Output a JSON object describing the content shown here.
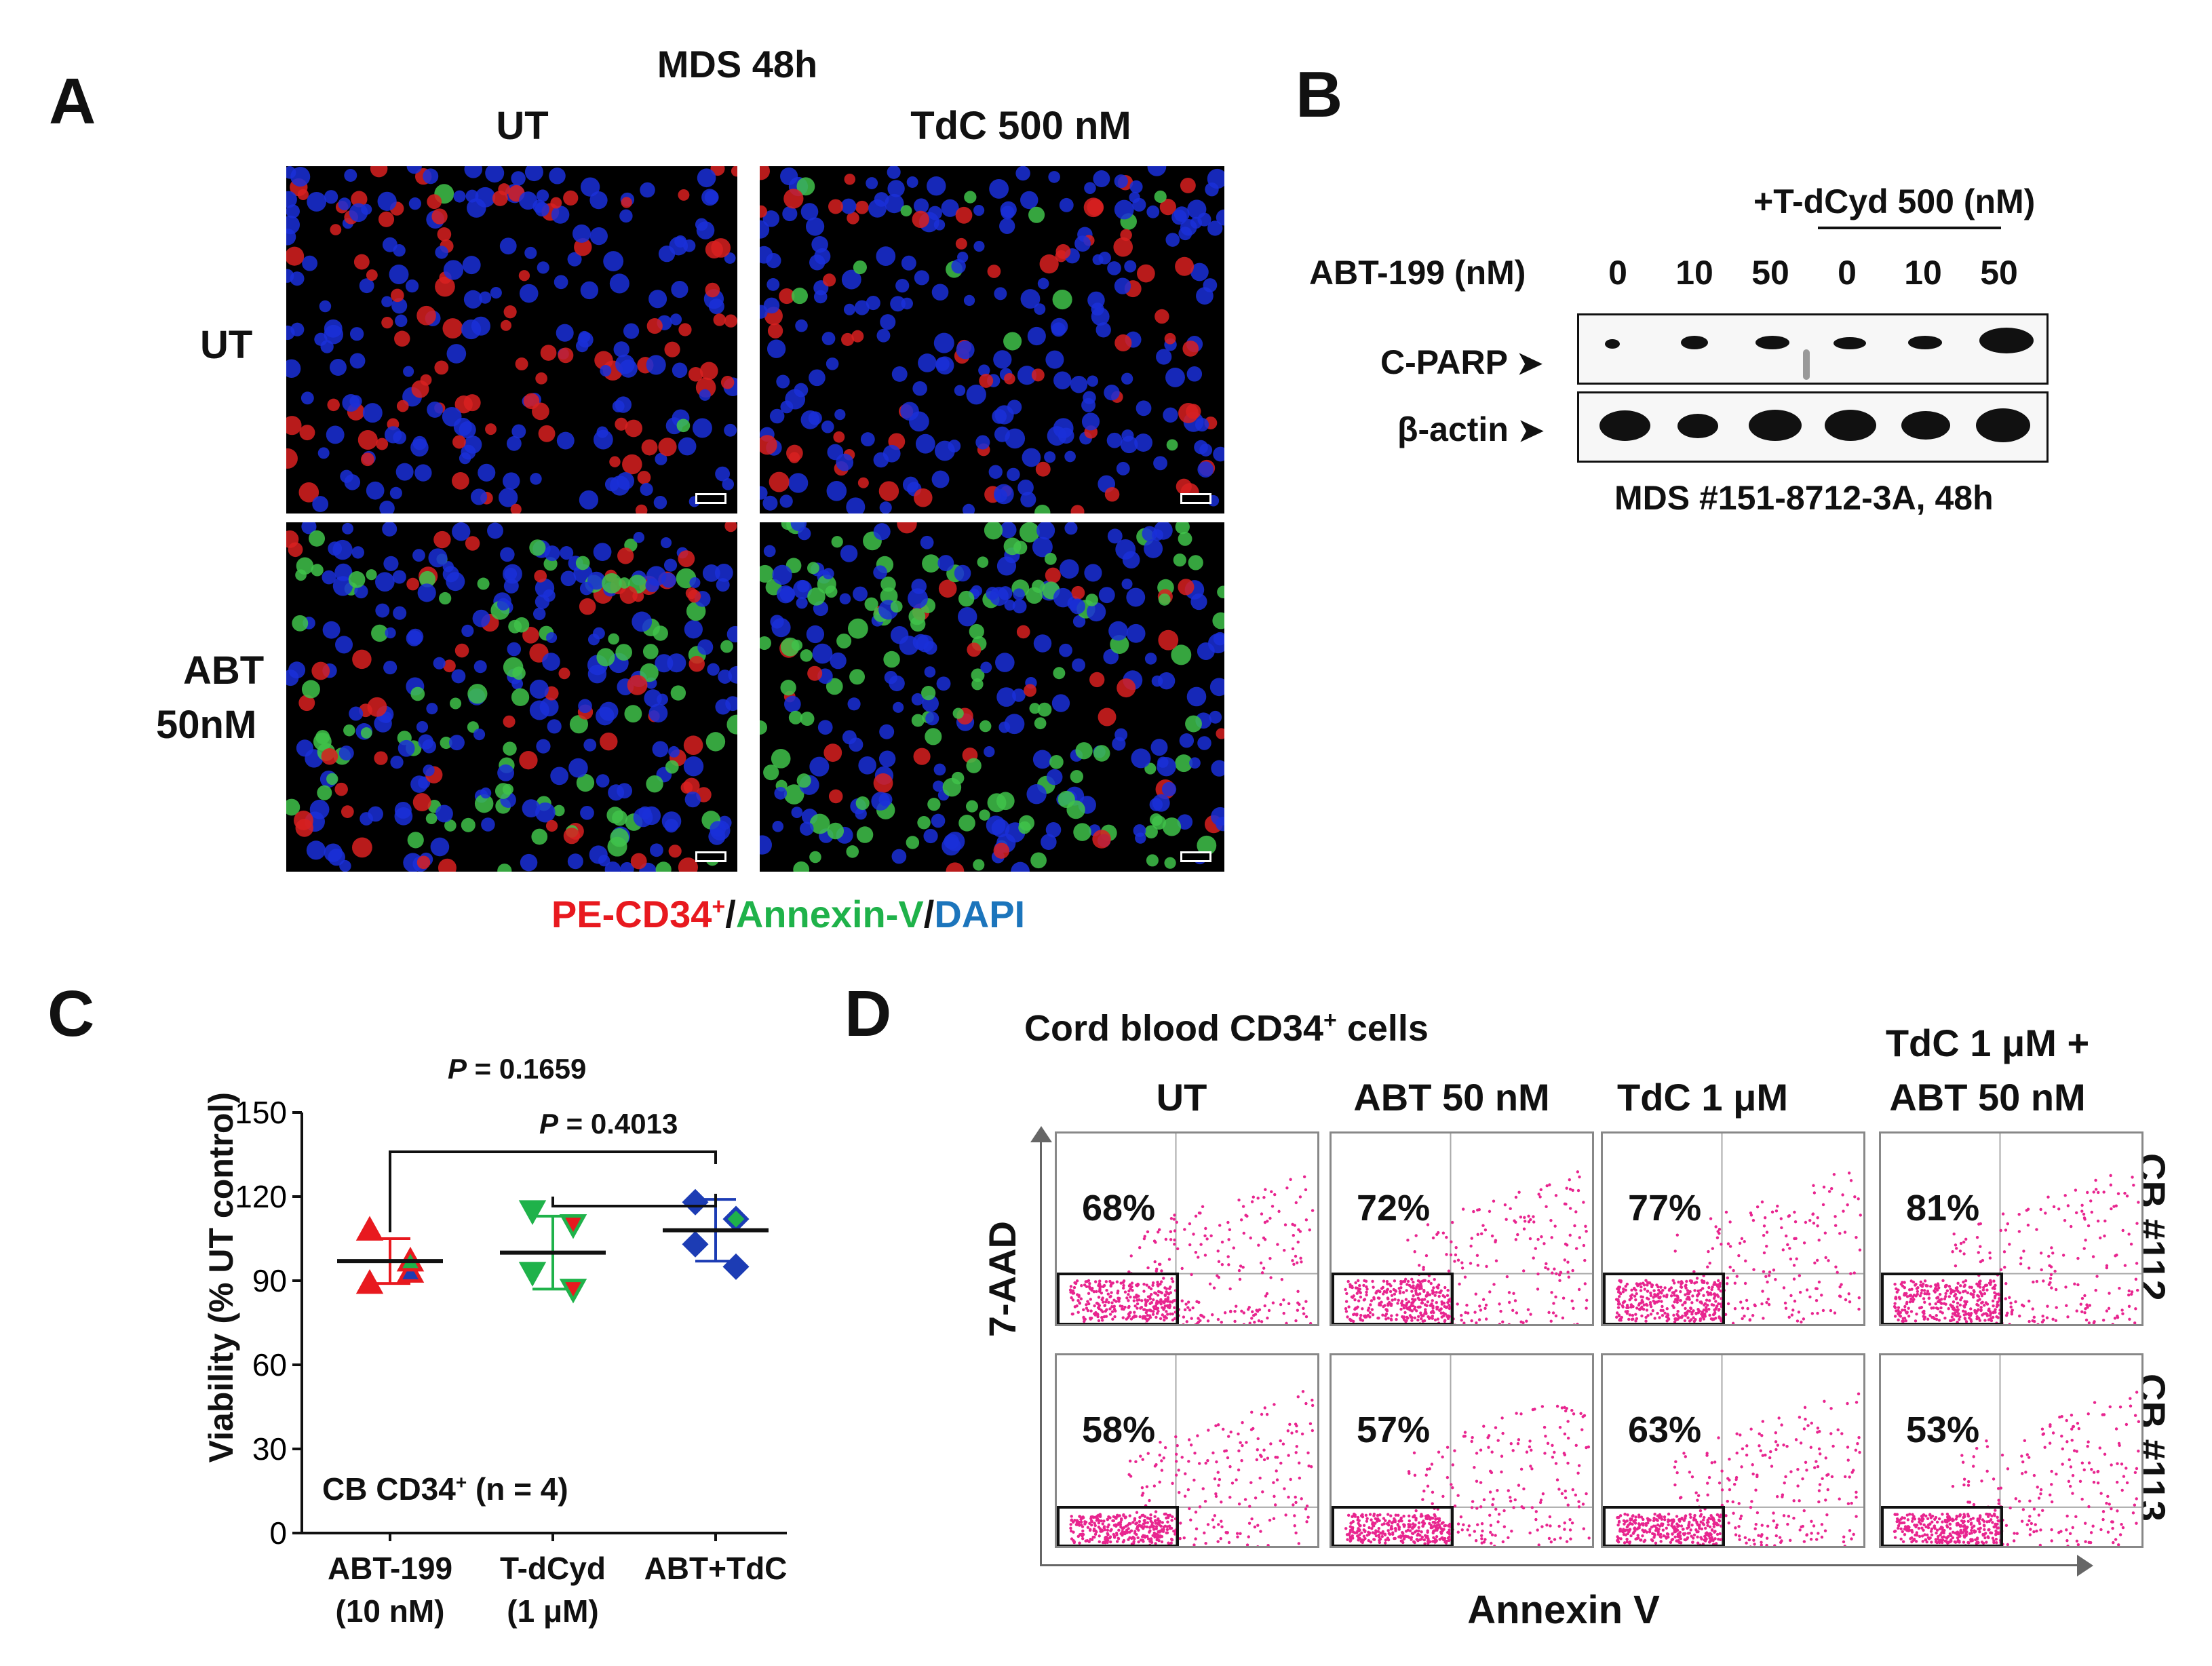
{
  "panelA": {
    "letter": "A",
    "title": "MDS 48h",
    "col_labels": [
      "UT",
      "TdC 500 nM"
    ],
    "row_labels": [
      "UT",
      "ABT",
      "50nM"
    ],
    "stain_legend": {
      "pe": "PE-CD34",
      "sup": "+",
      "sep1": "/",
      "annexin": "Annexin-V",
      "sep2": "/",
      "dapi": "DAPI"
    },
    "colors": {
      "red": "#e8191f",
      "green": "#1fb24a",
      "blue": "#1c75bc"
    }
  },
  "panelB": {
    "letter": "B",
    "treatment": "+T-dCyd 500 (nM)",
    "abt_label": "ABT-199 (nM)",
    "doses": [
      "0",
      "10",
      "50",
      "0",
      "10",
      "50"
    ],
    "rows": [
      "C-PARP",
      "β-actin"
    ],
    "caption": "MDS #151-8712-3A, 48h"
  },
  "panelC": {
    "letter": "C",
    "ylabel": "Viability (% UT control)",
    "yticks": [
      "0",
      "30",
      "60",
      "90",
      "120",
      "150"
    ],
    "categories_line1": [
      "ABT-199",
      "T-dCyd",
      "ABT+TdC"
    ],
    "categories_line2": [
      "(10 nM)",
      "(1 μM)",
      ""
    ],
    "inset": {
      "main": "CB CD34",
      "sup": "+",
      "rest": " (n = 4)"
    },
    "pvalues": [
      {
        "p": "P",
        "val": " = 0.1659"
      },
      {
        "p": "P",
        "val": " = 0.4013"
      }
    ]
  },
  "chart_data": {
    "type": "scatter",
    "categories": [
      "ABT-199 (10 nM)",
      "T-dCyd (1 μM)",
      "ABT+TdC"
    ],
    "ylabel": "Viability (% UT control)",
    "ylim": [
      0,
      150
    ],
    "series": [
      {
        "values": [
          97,
          100,
          108
        ]
      }
    ],
    "points": [
      [
        108,
        93,
        89,
        97
      ],
      [
        115,
        110,
        93,
        87
      ],
      [
        118,
        112,
        103,
        95
      ]
    ],
    "error": [
      [
        89,
        105
      ],
      [
        87,
        113
      ],
      [
        97,
        119
      ]
    ],
    "colors": [
      "#e8191f",
      "#1fb24a",
      "#1c3cb4"
    ]
  },
  "panelD": {
    "letter": "D",
    "title": {
      "main": "Cord blood CD34",
      "sup": "+",
      "rest": " cells"
    },
    "col_labels": [
      "UT",
      "ABT  50 nM",
      "TdC 1 μM",
      "TdC 1 μM +",
      "ABT  50 nM"
    ],
    "row_labels": [
      "CB #112",
      "CB #113"
    ],
    "ylabel": "7-AAD",
    "xlabel": "Annexin V",
    "percentages": [
      [
        "68%",
        "72%",
        "77%",
        "81%"
      ],
      [
        "58%",
        "57%",
        "63%",
        "53%"
      ]
    ],
    "dot_color": "#e8258f"
  }
}
